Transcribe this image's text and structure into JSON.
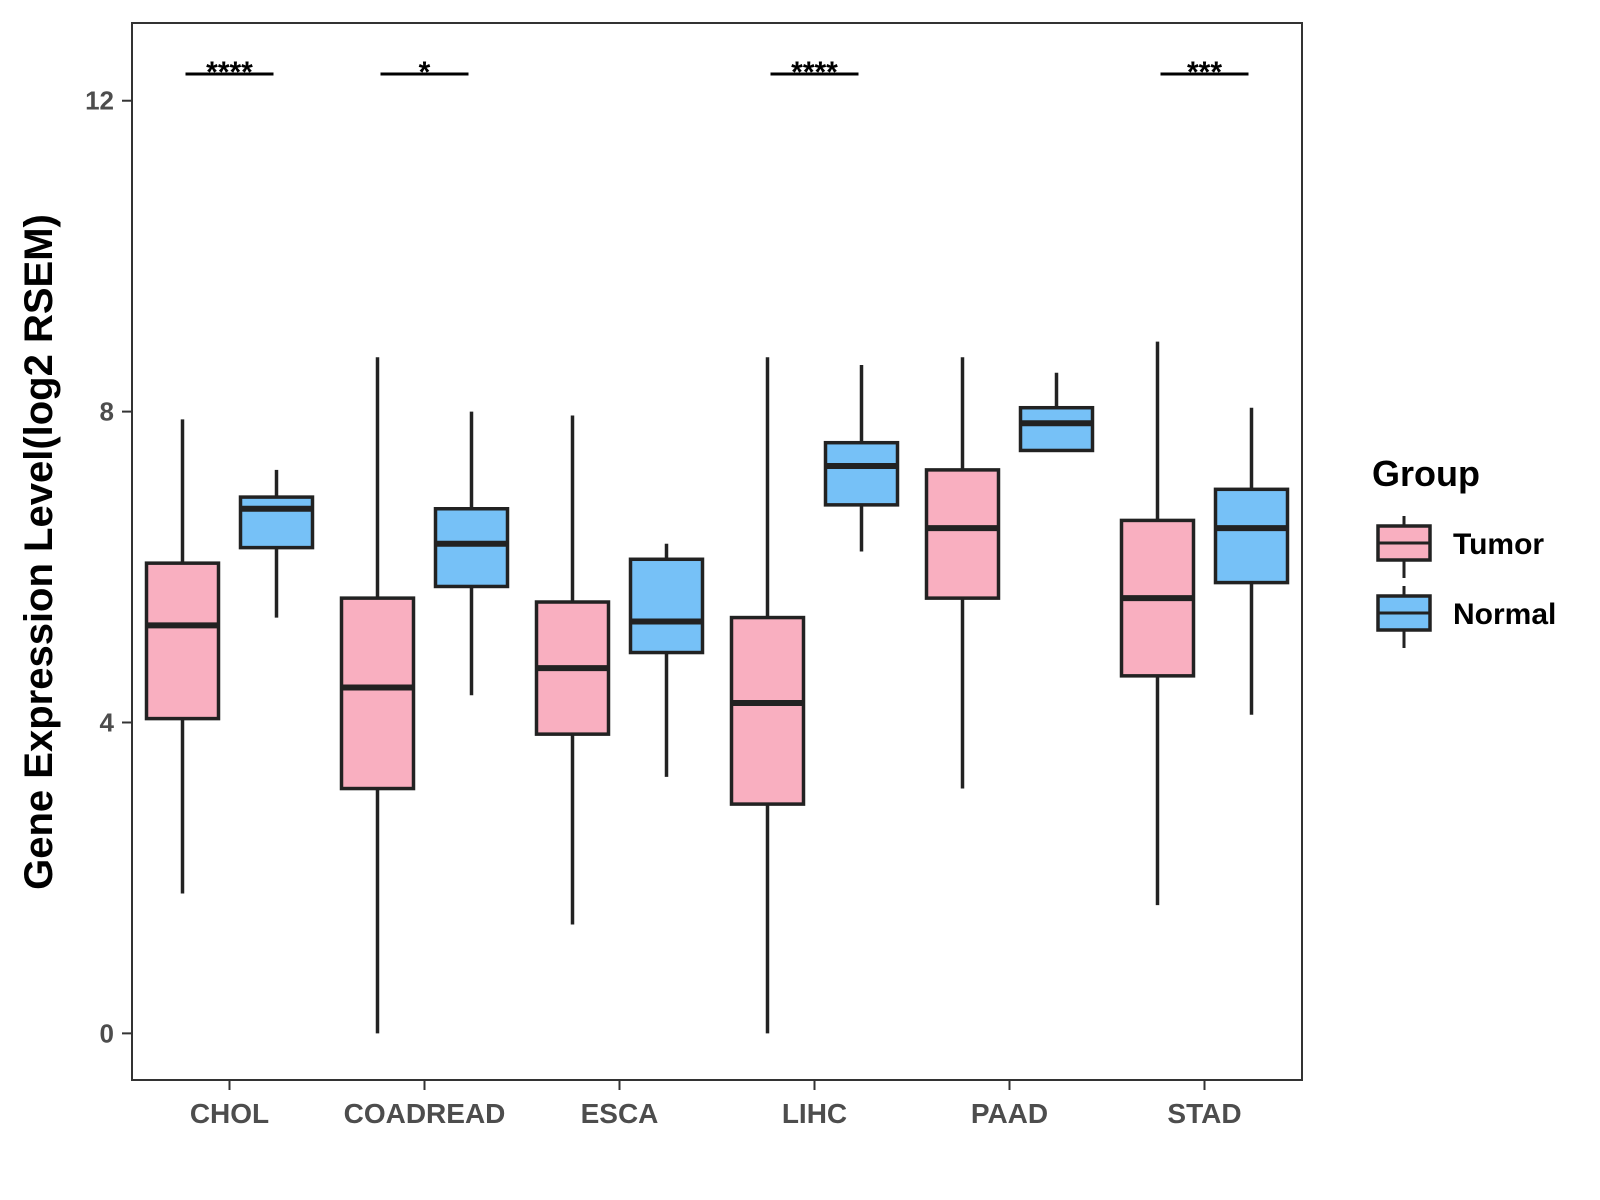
{
  "chart_data": {
    "type": "boxplot",
    "title": "",
    "xlabel": "",
    "ylabel": "Gene Expression Level(log2 RSEM)",
    "ylim": [
      -0.6,
      13.0
    ],
    "yticks": [
      0,
      4,
      8,
      12
    ],
    "grid": false,
    "categories": [
      "CHOL",
      "COADREAD",
      "ESCA",
      "LIHC",
      "PAAD",
      "STAD"
    ],
    "legend": {
      "title": "Group",
      "position": "right"
    },
    "series": [
      {
        "name": "Tumor",
        "color": "#F9AFC0",
        "boxes": [
          {
            "min": 1.8,
            "q1": 4.05,
            "median": 5.25,
            "q3": 6.05,
            "max": 7.9
          },
          {
            "min": 0.0,
            "q1": 3.15,
            "median": 4.45,
            "q3": 5.6,
            "max": 8.7
          },
          {
            "min": 1.4,
            "q1": 3.85,
            "median": 4.7,
            "q3": 5.55,
            "max": 7.95
          },
          {
            "min": 0.0,
            "q1": 2.95,
            "median": 4.25,
            "q3": 5.35,
            "max": 8.7
          },
          {
            "min": 3.15,
            "q1": 5.6,
            "median": 6.5,
            "q3": 7.25,
            "max": 8.7
          },
          {
            "min": 1.65,
            "q1": 4.6,
            "median": 5.6,
            "q3": 6.6,
            "max": 8.9
          }
        ]
      },
      {
        "name": "Normal",
        "color": "#76C1F7",
        "boxes": [
          {
            "min": 5.35,
            "q1": 6.25,
            "median": 6.75,
            "q3": 6.9,
            "max": 7.25
          },
          {
            "min": 4.35,
            "q1": 5.75,
            "median": 6.3,
            "q3": 6.75,
            "max": 8.0
          },
          {
            "min": 3.3,
            "q1": 4.9,
            "median": 5.3,
            "q3": 6.1,
            "max": 6.3
          },
          {
            "min": 6.2,
            "q1": 6.8,
            "median": 7.3,
            "q3": 7.6,
            "max": 8.6
          },
          {
            "min": 7.5,
            "q1": 7.5,
            "median": 7.85,
            "q3": 8.05,
            "max": 8.5
          },
          {
            "min": 4.1,
            "q1": 5.8,
            "median": 6.5,
            "q3": 7.0,
            "max": 8.05
          }
        ]
      }
    ],
    "significance": [
      {
        "category": "CHOL",
        "label": "****"
      },
      {
        "category": "COADREAD",
        "label": "*"
      },
      {
        "category": "ESCA",
        "label": ""
      },
      {
        "category": "LIHC",
        "label": "****"
      },
      {
        "category": "PAAD",
        "label": ""
      },
      {
        "category": "STAD",
        "label": "***"
      }
    ]
  }
}
